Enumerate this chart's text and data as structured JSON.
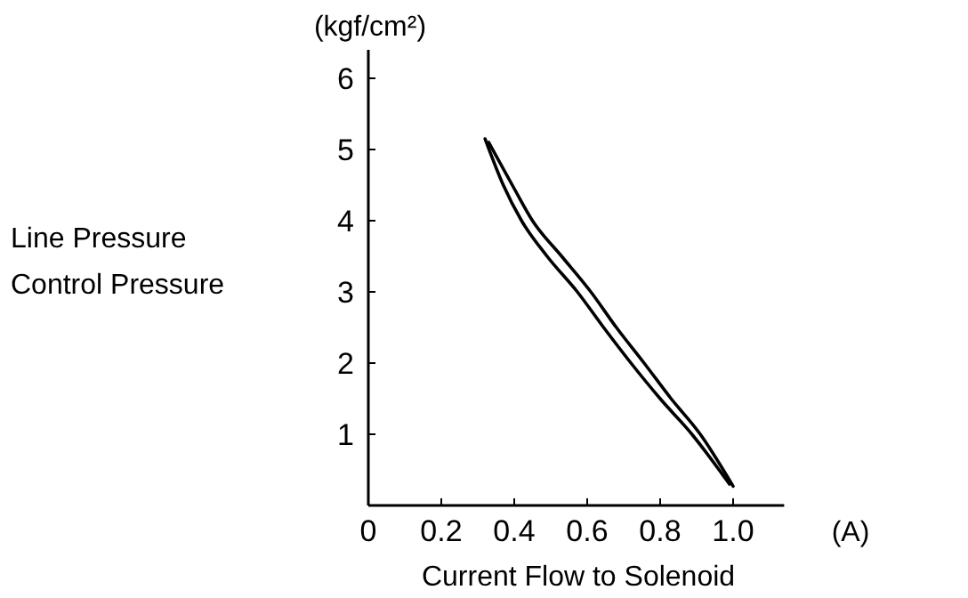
{
  "chart_data": {
    "type": "line",
    "xlabel": "Current Flow to Solenoid",
    "ylabel": "Line Pressure\nControl Pressure",
    "annotations": [
      "(kgf/cm²)",
      "(A)"
    ],
    "xlim": [
      0,
      1.14
    ],
    "xticks": [
      0,
      0.2,
      0.4,
      0.6,
      0.8,
      {
        "value": 1,
        "label": "1.0"
      }
    ],
    "ylim": [
      0,
      6.4
    ],
    "yticks": [
      1,
      2,
      3,
      4,
      5,
      6
    ],
    "grid": false,
    "marker": "none",
    "line_style": "solid",
    "series": [
      {
        "color": "#000000",
        "x": [
          0.33,
          0.4,
          0.45,
          0.53,
          0.61,
          0.68,
          0.756,
          0.83,
          0.91,
          1.0
        ],
        "values": [
          5.1,
          4.45,
          4,
          3.5,
          3,
          2.5,
          2,
          1.5,
          1,
          0.27
        ]
      },
      {
        "color": "#000000",
        "x": [
          0.32,
          0.37,
          0.42,
          0.49,
          0.573,
          0.645,
          0.72,
          0.8,
          0.887,
          0.99
        ],
        "values": [
          5.15,
          4.5,
          4,
          3.5,
          3,
          2.5,
          2,
          1.5,
          1,
          0.3
        ]
      }
    ]
  }
}
